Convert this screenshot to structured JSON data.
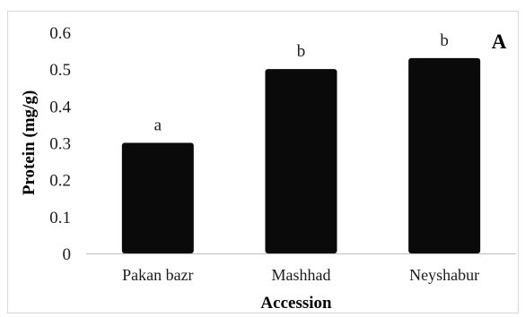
{
  "chart_data": {
    "type": "bar",
    "categories": [
      "Pakan bazr",
      "Mashhad",
      "Neyshabur"
    ],
    "values": [
      0.3,
      0.5,
      0.53
    ],
    "data_labels": [
      "a",
      "b",
      "b"
    ],
    "xlabel": "Accession",
    "ylabel": "Protein (mg/g)",
    "ylim": [
      0,
      0.6
    ],
    "yticks": [
      "0",
      "0.1",
      "0.2",
      "0.3",
      "0.4",
      "0.5",
      "0.6"
    ],
    "panel_label": "A",
    "grid": false,
    "legend": "none",
    "bar_color": "#0a0a0a"
  }
}
